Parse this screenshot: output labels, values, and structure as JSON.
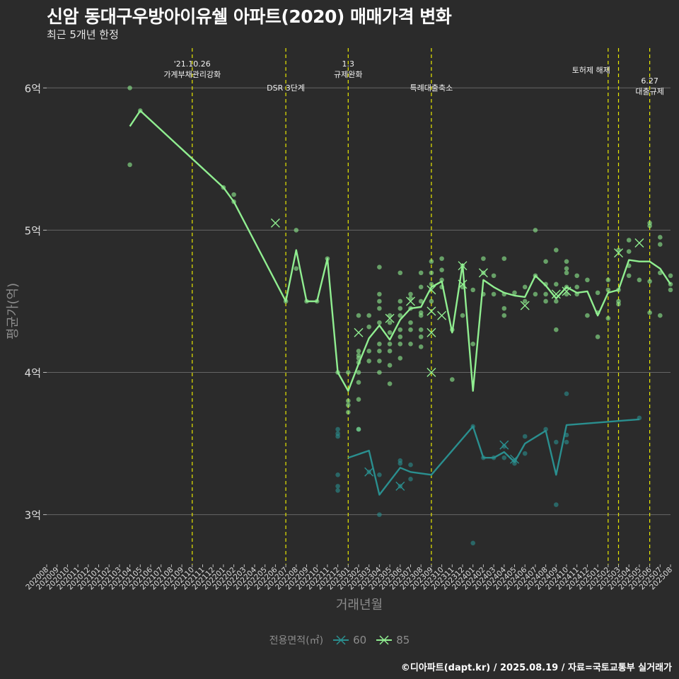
{
  "header": {
    "title": "신암 동대구우방아이유쉘 아파트(2020) 매매가격 변화",
    "subtitle": "최근 5개년 한정"
  },
  "caption": "©디아파트(dapt.kr) / 2025.08.19 / 자료=국토교통부 실거래가",
  "legend": {
    "title": "전용면적(㎡)",
    "items": [
      {
        "label": "60",
        "color": "#2a8f8f"
      },
      {
        "label": "85",
        "color": "#90ee90"
      }
    ]
  },
  "chart_data": {
    "type": "line",
    "xlabel": "거래년월",
    "ylabel": "평균가(억)",
    "categories": [
      "202008",
      "202009",
      "202010",
      "202011",
      "202012",
      "202101",
      "202102",
      "202103",
      "202104",
      "202105",
      "202106",
      "202107",
      "202108",
      "202109",
      "202110",
      "202111",
      "202112",
      "202201",
      "202202",
      "202203",
      "202204",
      "202205",
      "202206",
      "202207",
      "202208",
      "202209",
      "202210",
      "202211",
      "202212",
      "202301",
      "202302",
      "202303",
      "202304",
      "202305",
      "202306",
      "202307",
      "202308",
      "202309",
      "202310",
      "202311",
      "202312",
      "202401",
      "202402",
      "202403",
      "202404",
      "202405",
      "202406",
      "202407",
      "202408",
      "202409",
      "202410",
      "202411",
      "202412",
      "202501",
      "202502",
      "202503",
      "202504",
      "202505",
      "202506",
      "202507",
      "202508"
    ],
    "yticks": [
      {
        "value": 3,
        "label": "3억"
      },
      {
        "value": 4,
        "label": "4억"
      },
      {
        "value": 5,
        "label": "5억"
      },
      {
        "value": 6,
        "label": "6억"
      }
    ],
    "ylim": [
      2.65,
      6.28
    ],
    "grid": "horizontal",
    "legend_position": "bottom",
    "colors": {
      "background": "#2b2b2b",
      "grid": "#666666",
      "event_line": "#e8e800",
      "axis_text": "#dddddd",
      "axis_title": "#8c8c8c"
    },
    "events": [
      {
        "x": "202110",
        "lines": [
          "'21.10.26",
          "가계부채관리강화"
        ],
        "level": 1
      },
      {
        "x": "202207",
        "lines": [
          "DSR 3단계"
        ],
        "level": 2
      },
      {
        "x": "202301",
        "lines": [
          "1.3",
          "규제완화"
        ],
        "level": 1
      },
      {
        "x": "202309",
        "lines": [
          "특례대출축소"
        ],
        "level": 2
      },
      {
        "x": "202502",
        "lines": [
          "토허제 해제"
        ],
        "level": 1,
        "anchor": "end"
      },
      {
        "x": "202503",
        "lines": [],
        "level": 1
      },
      {
        "x": "202506",
        "lines": [
          "6.27",
          "대출규제"
        ],
        "level": 2
      }
    ],
    "series": [
      {
        "name": "60",
        "color": "#2a8f8f",
        "line": [
          [
            "202301",
            3.4
          ],
          [
            "202303",
            3.45
          ],
          [
            "202304",
            3.14
          ],
          [
            "202306",
            3.33
          ],
          [
            "202307",
            3.3
          ],
          [
            "202309",
            3.28
          ],
          [
            "202401",
            3.62
          ],
          [
            "202402",
            3.4
          ],
          [
            "202403",
            3.4
          ],
          [
            "202404",
            3.44
          ],
          [
            "202405",
            3.37
          ],
          [
            "202406",
            3.5
          ],
          [
            "202408",
            3.59
          ],
          [
            "202409",
            3.28
          ],
          [
            "202410",
            3.63
          ],
          [
            "202505",
            3.67
          ]
        ],
        "points": [
          [
            "202212",
            3.6
          ],
          [
            "202212",
            3.57
          ],
          [
            "202212",
            3.55
          ],
          [
            "202212",
            3.28
          ],
          [
            "202212",
            3.2
          ],
          [
            "202212",
            3.17
          ],
          [
            "202302",
            3.6
          ],
          [
            "202303",
            3.3
          ],
          [
            "202304",
            3.28
          ],
          [
            "202304",
            3.0
          ],
          [
            "202306",
            3.38
          ],
          [
            "202306",
            3.36
          ],
          [
            "202306",
            3.2
          ],
          [
            "202307",
            3.35
          ],
          [
            "202307",
            3.25
          ],
          [
            "202401",
            3.62
          ],
          [
            "202401",
            2.8
          ],
          [
            "202402",
            3.4
          ],
          [
            "202403",
            3.4
          ],
          [
            "202404",
            3.48
          ],
          [
            "202404",
            3.4
          ],
          [
            "202405",
            3.36
          ],
          [
            "202405",
            3.38
          ],
          [
            "202406",
            3.55
          ],
          [
            "202406",
            3.43
          ],
          [
            "202408",
            3.6
          ],
          [
            "202409",
            3.07
          ],
          [
            "202409",
            3.51
          ],
          [
            "202410",
            3.85
          ],
          [
            "202410",
            3.56
          ],
          [
            "202410",
            3.51
          ],
          [
            "202505",
            3.68
          ]
        ],
        "crosses": [
          [
            "202303",
            3.3
          ],
          [
            "202306",
            3.2
          ],
          [
            "202404",
            3.49
          ],
          [
            "202405",
            3.39
          ]
        ]
      },
      {
        "name": "85",
        "color": "#90ee90",
        "line": [
          [
            "202104",
            5.73
          ],
          [
            "202105",
            5.84
          ],
          [
            "202201",
            5.3
          ],
          [
            "202202",
            5.2
          ],
          [
            "202207",
            4.5
          ],
          [
            "202208",
            4.86
          ],
          [
            "202209",
            4.5
          ],
          [
            "202210",
            4.5
          ],
          [
            "202211",
            4.8
          ],
          [
            "202212",
            4.0
          ],
          [
            "202301",
            3.87
          ],
          [
            "202302",
            4.06
          ],
          [
            "202303",
            4.24
          ],
          [
            "202304",
            4.33
          ],
          [
            "202305",
            4.23
          ],
          [
            "202306",
            4.37
          ],
          [
            "202307",
            4.45
          ],
          [
            "202308",
            4.46
          ],
          [
            "202309",
            4.6
          ],
          [
            "202310",
            4.64
          ],
          [
            "202311",
            4.28
          ],
          [
            "202312",
            4.76
          ],
          [
            "202401",
            3.87
          ],
          [
            "202402",
            4.65
          ],
          [
            "202403",
            4.6
          ],
          [
            "202404",
            4.56
          ],
          [
            "202405",
            4.54
          ],
          [
            "202406",
            4.53
          ],
          [
            "202407",
            4.68
          ],
          [
            "202408",
            4.61
          ],
          [
            "202409",
            4.52
          ],
          [
            "202410",
            4.6
          ],
          [
            "202411",
            4.56
          ],
          [
            "202412",
            4.57
          ],
          [
            "202501",
            4.4
          ],
          [
            "202502",
            4.56
          ],
          [
            "202503",
            4.58
          ],
          [
            "202504",
            4.79
          ],
          [
            "202505",
            4.78
          ],
          [
            "202506",
            4.78
          ],
          [
            "202507",
            4.73
          ],
          [
            "202508",
            4.62
          ]
        ],
        "points": [
          [
            "202104",
            6.0
          ],
          [
            "202104",
            5.46
          ],
          [
            "202105",
            5.84
          ],
          [
            "202201",
            5.3
          ],
          [
            "202202",
            5.25
          ],
          [
            "202202",
            5.2
          ],
          [
            "202207",
            4.5
          ],
          [
            "202208",
            5.0
          ],
          [
            "202208",
            4.73
          ],
          [
            "202209",
            4.5
          ],
          [
            "202210",
            4.5
          ],
          [
            "202211",
            4.8
          ],
          [
            "202212",
            4.0
          ],
          [
            "202301",
            4.0
          ],
          [
            "202301",
            3.8
          ],
          [
            "202301",
            3.77
          ],
          [
            "202301",
            3.72
          ],
          [
            "202302",
            4.4
          ],
          [
            "202302",
            4.15
          ],
          [
            "202302",
            4.12
          ],
          [
            "202302",
            4.1
          ],
          [
            "202302",
            4.07
          ],
          [
            "202302",
            4.0
          ],
          [
            "202302",
            3.93
          ],
          [
            "202302",
            3.81
          ],
          [
            "202302",
            3.6
          ],
          [
            "202303",
            4.4
          ],
          [
            "202303",
            4.32
          ],
          [
            "202303",
            4.15
          ],
          [
            "202303",
            4.08
          ],
          [
            "202304",
            4.74
          ],
          [
            "202304",
            4.55
          ],
          [
            "202304",
            4.5
          ],
          [
            "202304",
            4.45
          ],
          [
            "202304",
            4.35
          ],
          [
            "202304",
            4.2
          ],
          [
            "202304",
            4.15
          ],
          [
            "202304",
            4.08
          ],
          [
            "202304",
            4.0
          ],
          [
            "202305",
            4.4
          ],
          [
            "202305",
            4.35
          ],
          [
            "202305",
            4.28
          ],
          [
            "202305",
            4.2
          ],
          [
            "202305",
            4.15
          ],
          [
            "202305",
            4.05
          ],
          [
            "202305",
            3.92
          ],
          [
            "202306",
            4.7
          ],
          [
            "202306",
            4.5
          ],
          [
            "202306",
            4.45
          ],
          [
            "202306",
            4.4
          ],
          [
            "202306",
            4.3
          ],
          [
            "202306",
            4.25
          ],
          [
            "202306",
            4.2
          ],
          [
            "202306",
            4.1
          ],
          [
            "202307",
            4.55
          ],
          [
            "202307",
            4.52
          ],
          [
            "202307",
            4.45
          ],
          [
            "202307",
            4.35
          ],
          [
            "202307",
            4.3
          ],
          [
            "202307",
            4.2
          ],
          [
            "202308",
            4.7
          ],
          [
            "202308",
            4.6
          ],
          [
            "202308",
            4.5
          ],
          [
            "202308",
            4.42
          ],
          [
            "202308",
            4.4
          ],
          [
            "202308",
            4.3
          ],
          [
            "202308",
            4.25
          ],
          [
            "202308",
            4.18
          ],
          [
            "202309",
            4.78
          ],
          [
            "202309",
            4.7
          ],
          [
            "202309",
            4.62
          ],
          [
            "202309",
            4.5
          ],
          [
            "202310",
            4.8
          ],
          [
            "202310",
            4.72
          ],
          [
            "202310",
            4.65
          ],
          [
            "202310",
            4.6
          ],
          [
            "202311",
            4.3
          ],
          [
            "202311",
            3.95
          ],
          [
            "202312",
            4.75
          ],
          [
            "202312",
            4.6
          ],
          [
            "202312",
            4.4
          ],
          [
            "202401",
            4.58
          ],
          [
            "202401",
            4.2
          ],
          [
            "202402",
            4.8
          ],
          [
            "202402",
            4.7
          ],
          [
            "202402",
            4.55
          ],
          [
            "202403",
            4.68
          ],
          [
            "202403",
            4.55
          ],
          [
            "202404",
            4.8
          ],
          [
            "202404",
            4.55
          ],
          [
            "202404",
            4.45
          ],
          [
            "202404",
            4.4
          ],
          [
            "202405",
            4.56
          ],
          [
            "202406",
            4.6
          ],
          [
            "202406",
            4.5
          ],
          [
            "202407",
            5.0
          ],
          [
            "202407",
            4.68
          ],
          [
            "202407",
            4.55
          ],
          [
            "202408",
            4.78
          ],
          [
            "202408",
            4.62
          ],
          [
            "202408",
            4.55
          ],
          [
            "202408",
            4.5
          ],
          [
            "202409",
            4.86
          ],
          [
            "202409",
            4.62
          ],
          [
            "202409",
            4.5
          ],
          [
            "202409",
            4.3
          ],
          [
            "202410",
            4.78
          ],
          [
            "202410",
            4.73
          ],
          [
            "202410",
            4.7
          ],
          [
            "202410",
            4.6
          ],
          [
            "202410",
            4.55
          ],
          [
            "202411",
            4.68
          ],
          [
            "202411",
            4.6
          ],
          [
            "202411",
            4.55
          ],
          [
            "202412",
            4.65
          ],
          [
            "202412",
            4.4
          ],
          [
            "202501",
            4.56
          ],
          [
            "202501",
            4.42
          ],
          [
            "202501",
            4.25
          ],
          [
            "202502",
            4.65
          ],
          [
            "202502",
            4.58
          ],
          [
            "202502",
            4.38
          ],
          [
            "202503",
            4.86
          ],
          [
            "202503",
            4.58
          ],
          [
            "202503",
            4.5
          ],
          [
            "202503",
            4.48
          ],
          [
            "202504",
            4.93
          ],
          [
            "202504",
            4.85
          ],
          [
            "202504",
            4.75
          ],
          [
            "202504",
            4.68
          ],
          [
            "202505",
            4.65
          ],
          [
            "202506",
            5.05
          ],
          [
            "202506",
            5.03
          ],
          [
            "202506",
            4.64
          ],
          [
            "202506",
            4.42
          ],
          [
            "202507",
            4.95
          ],
          [
            "202507",
            4.9
          ],
          [
            "202507",
            4.7
          ],
          [
            "202507",
            4.4
          ],
          [
            "202508",
            4.68
          ],
          [
            "202508",
            4.62
          ],
          [
            "202508",
            4.58
          ]
        ],
        "crosses": [
          [
            "202206",
            5.05
          ],
          [
            "202302",
            4.28
          ],
          [
            "202305",
            4.38
          ],
          [
            "202307",
            4.5
          ],
          [
            "202309",
            4.58
          ],
          [
            "202309",
            4.43
          ],
          [
            "202309",
            4.28
          ],
          [
            "202309",
            4.0
          ],
          [
            "202310",
            4.4
          ],
          [
            "202312",
            4.75
          ],
          [
            "202312",
            4.62
          ],
          [
            "202402",
            4.7
          ],
          [
            "202406",
            4.47
          ],
          [
            "202409",
            4.55
          ],
          [
            "202410",
            4.57
          ],
          [
            "202503",
            4.84
          ],
          [
            "202505",
            4.91
          ]
        ]
      }
    ]
  }
}
